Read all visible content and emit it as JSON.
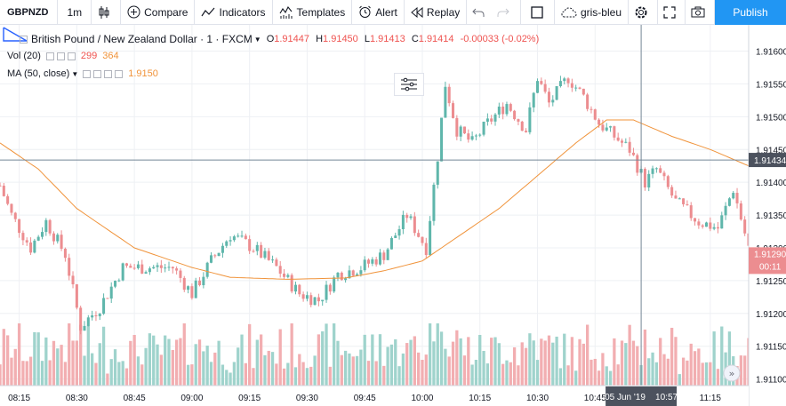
{
  "toolbar": {
    "symbol": "GBPNZD",
    "interval": "1m",
    "compare": "Compare",
    "indicators": "Indicators",
    "templates": "Templates",
    "alert": "Alert",
    "replay": "Replay",
    "theme": "gris-bleu",
    "publish": "Publish"
  },
  "legend": {
    "instrument": "British Pound / New Zealand Dollar · 1 · FXCM",
    "open_k": "O",
    "open": "1.91447",
    "high_k": "H",
    "high": "1.91450",
    "low_k": "L",
    "low": "1.91413",
    "close_k": "C",
    "close": "1.91414",
    "change": "-0.00033 (-0.02%)",
    "vol_label": "Vol (20)",
    "vol_value1": "299",
    "vol_value2": "364",
    "ma_label": "MA (50, close)",
    "ma_value": "1.9150"
  },
  "colors": {
    "up": "#5fb6ab",
    "down": "#ec8d90",
    "up_vol": "#9fd3cc",
    "down_vol": "#f2aeb1",
    "ma": "#f0933a",
    "accent": "#2196f3",
    "grid": "#eef0f4"
  },
  "price_scale": {
    "labels": [
      "1.91600",
      "1.91550",
      "1.91500",
      "1.91450",
      "1.91400",
      "1.91350",
      "1.91300",
      "1.91250",
      "1.91200",
      "1.91150",
      "1.91100"
    ],
    "crosshair_price": "1.91434",
    "last_price": "1.91290",
    "countdown": "00:11"
  },
  "time_scale": {
    "labels": [
      "08:15",
      "08:30",
      "08:45",
      "09:00",
      "09:15",
      "09:30",
      "09:45",
      "10:00",
      "10:15",
      "10:30",
      "10:45",
      "11:15"
    ],
    "crosshair_time": "05 Jun '19    10:57"
  },
  "chart_data": {
    "type": "candlestick",
    "symbol": "GBPNZD",
    "interval": "1m",
    "x_range": [
      "08:10",
      "11:25"
    ],
    "y_range": [
      1.9109,
      1.9164
    ],
    "grid": true,
    "overlays": [
      {
        "name": "MA (50, close)",
        "color": "#f0933a"
      },
      {
        "name": "Vol (20)"
      }
    ],
    "close_keypoints": [
      {
        "t": "08:10",
        "p": 1.91395
      },
      {
        "t": "08:13",
        "p": 1.9135
      },
      {
        "t": "08:18",
        "p": 1.913
      },
      {
        "t": "08:22",
        "p": 1.9134
      },
      {
        "t": "08:27",
        "p": 1.9129
      },
      {
        "t": "08:31",
        "p": 1.9118
      },
      {
        "t": "08:36",
        "p": 1.9121
      },
      {
        "t": "08:42",
        "p": 1.9127
      },
      {
        "t": "08:48",
        "p": 1.9127
      },
      {
        "t": "08:55",
        "p": 1.9127
      },
      {
        "t": "09:00",
        "p": 1.9123
      },
      {
        "t": "09:05",
        "p": 1.9128
      },
      {
        "t": "09:10",
        "p": 1.9132
      },
      {
        "t": "09:16",
        "p": 1.913
      },
      {
        "t": "09:22",
        "p": 1.9127
      },
      {
        "t": "09:28",
        "p": 1.9123
      },
      {
        "t": "09:33",
        "p": 1.9122
      },
      {
        "t": "09:38",
        "p": 1.9126
      },
      {
        "t": "09:44",
        "p": 1.9127
      },
      {
        "t": "09:50",
        "p": 1.9129
      },
      {
        "t": "09:56",
        "p": 1.9135
      },
      {
        "t": "10:01",
        "p": 1.913
      },
      {
        "t": "10:04",
        "p": 1.9144
      },
      {
        "t": "10:06",
        "p": 1.9155
      },
      {
        "t": "10:09",
        "p": 1.9148
      },
      {
        "t": "10:13",
        "p": 1.9146
      },
      {
        "t": "10:17",
        "p": 1.9149
      },
      {
        "t": "10:22",
        "p": 1.9152
      },
      {
        "t": "10:27",
        "p": 1.9148
      },
      {
        "t": "10:30",
        "p": 1.9156
      },
      {
        "t": "10:33",
        "p": 1.9152
      },
      {
        "t": "10:38",
        "p": 1.9156
      },
      {
        "t": "10:42",
        "p": 1.9153
      },
      {
        "t": "10:46",
        "p": 1.9149
      },
      {
        "t": "10:50",
        "p": 1.9147
      },
      {
        "t": "10:54",
        "p": 1.9145
      },
      {
        "t": "10:58",
        "p": 1.914
      },
      {
        "t": "11:01",
        "p": 1.9142
      },
      {
        "t": "11:06",
        "p": 1.9137
      },
      {
        "t": "11:12",
        "p": 1.9134
      },
      {
        "t": "11:17",
        "p": 1.9133
      },
      {
        "t": "11:21",
        "p": 1.9139
      },
      {
        "t": "11:25",
        "p": 1.913
      }
    ],
    "ma_keypoints": [
      {
        "t": "08:10",
        "p": 1.9146
      },
      {
        "t": "08:20",
        "p": 1.9142
      },
      {
        "t": "08:30",
        "p": 1.9136
      },
      {
        "t": "08:45",
        "p": 1.913
      },
      {
        "t": "09:00",
        "p": 1.9127
      },
      {
        "t": "09:10",
        "p": 1.91255
      },
      {
        "t": "09:25",
        "p": 1.91252
      },
      {
        "t": "09:40",
        "p": 1.91254
      },
      {
        "t": "09:50",
        "p": 1.91265
      },
      {
        "t": "10:00",
        "p": 1.9128
      },
      {
        "t": "10:10",
        "p": 1.9132
      },
      {
        "t": "10:20",
        "p": 1.9136
      },
      {
        "t": "10:30",
        "p": 1.9141
      },
      {
        "t": "10:40",
        "p": 1.9146
      },
      {
        "t": "10:48",
        "p": 1.91495
      },
      {
        "t": "10:55",
        "p": 1.91495
      },
      {
        "t": "11:05",
        "p": 1.9147
      },
      {
        "t": "11:15",
        "p": 1.9145
      },
      {
        "t": "11:25",
        "p": 1.91425
      }
    ]
  }
}
